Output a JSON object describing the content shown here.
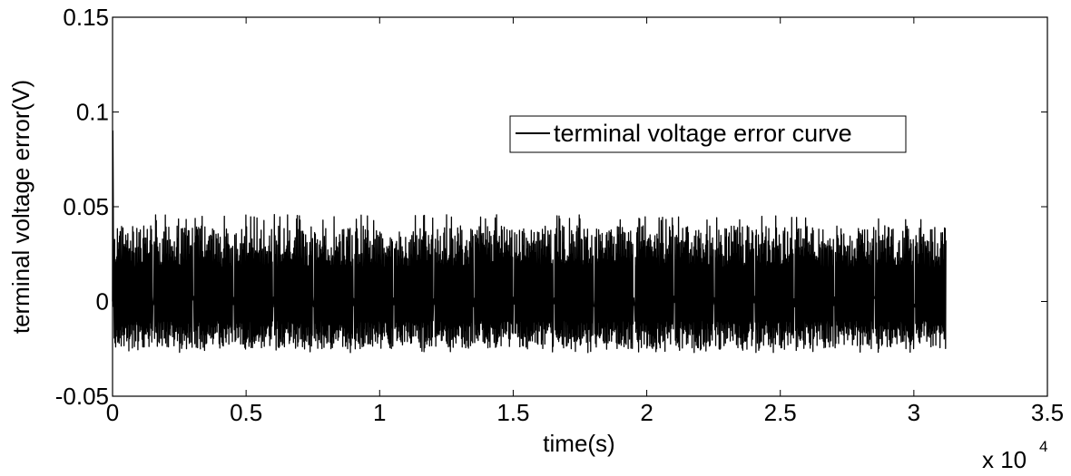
{
  "chart_data": {
    "type": "line",
    "title": "",
    "xlabel": "time(s)",
    "ylabel": "terminal voltage error(V)",
    "x_multiplier": {
      "base": "x 10",
      "exponent": "4"
    },
    "xlim": [
      0,
      3.5
    ],
    "ylim": [
      -0.05,
      0.15
    ],
    "x_ticks": [
      "0",
      "0.5",
      "1",
      "1.5",
      "2",
      "2.5",
      "3",
      "3.5"
    ],
    "y_ticks": [
      "-0.05",
      "0",
      "0.05",
      "0.1",
      "0.15"
    ],
    "grid": false,
    "legend_position": "top-right",
    "series": [
      {
        "name": "terminal voltage error curve",
        "color": "#000000",
        "x_range": [
          0,
          3.12
        ],
        "initial_spike": 0.09,
        "band_max": 0.04,
        "band_min": -0.025,
        "peak_max": 0.046,
        "peak_min": -0.027
      }
    ]
  }
}
